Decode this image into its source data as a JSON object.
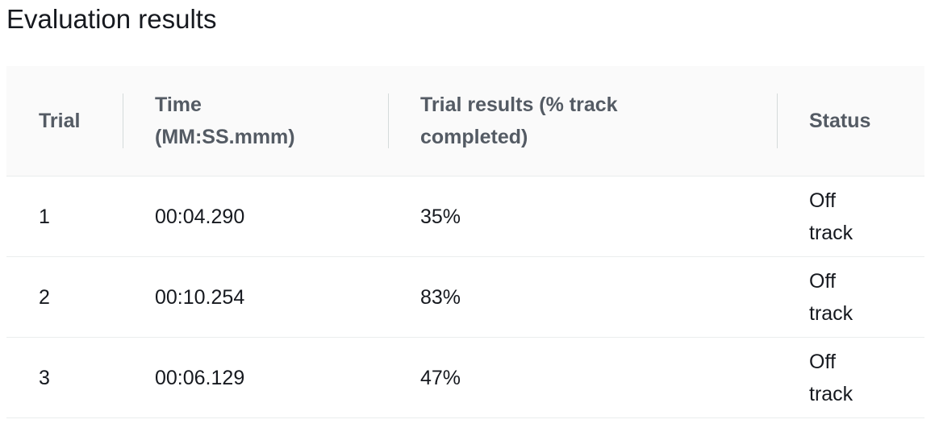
{
  "header": {
    "title": "Evaluation results"
  },
  "table": {
    "columns": [
      {
        "label": "Trial"
      },
      {
        "label": "Time (MM:SS.mmm)"
      },
      {
        "label": "Trial results (% track completed)"
      },
      {
        "label": "Status"
      }
    ],
    "rows": [
      {
        "trial": "1",
        "time": "00:04.290",
        "result": "35%",
        "status": "Off track"
      },
      {
        "trial": "2",
        "time": "00:10.254",
        "result": "83%",
        "status": "Off track"
      },
      {
        "trial": "3",
        "time": "00:06.129",
        "result": "47%",
        "status": "Off track"
      }
    ]
  }
}
